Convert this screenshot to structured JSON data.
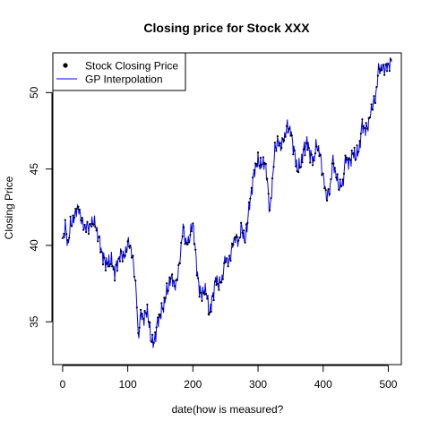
{
  "chart_data": {
    "type": "line",
    "title": "Closing price for Stock XXX",
    "xlabel": "date(how is measured?",
    "ylabel": "Closing Price",
    "xlim": [
      -15,
      520
    ],
    "ylim": [
      32.2,
      52.6
    ],
    "xticks": [
      0,
      100,
      200,
      300,
      400,
      500
    ],
    "yticks": [
      35,
      40,
      45,
      50
    ],
    "grid": false,
    "legend_position": "top-left",
    "colors": {
      "points": "#000000",
      "line": "#0000ff",
      "axes": "#000000"
    },
    "series": [
      {
        "name": "Stock Closing Price",
        "kind": "points"
      },
      {
        "name": "GP Interpolation",
        "kind": "line"
      }
    ],
    "anchors_x": [
      0,
      4,
      8,
      12,
      18,
      22,
      26,
      32,
      40,
      48,
      55,
      62,
      68,
      75,
      80,
      85,
      90,
      95,
      100,
      105,
      110,
      113,
      116,
      120,
      125,
      130,
      135,
      140,
      145,
      150,
      155,
      160,
      168,
      172,
      178,
      185,
      190,
      195,
      200,
      205,
      210,
      215,
      220,
      225,
      230,
      235,
      240,
      245,
      250,
      255,
      260,
      265,
      270,
      275,
      280,
      285,
      290,
      295,
      300,
      305,
      310,
      315,
      318,
      322,
      326,
      330,
      335,
      340,
      345,
      350,
      355,
      360,
      365,
      370,
      375,
      380,
      385,
      390,
      395,
      400,
      405,
      410,
      415,
      420,
      425,
      430,
      435,
      440,
      445,
      450,
      455,
      460,
      465,
      470,
      475,
      480,
      485,
      490,
      495,
      500,
      505
    ],
    "anchors_y": [
      40.2,
      41.3,
      40.0,
      41.3,
      41.8,
      42.5,
      42.2,
      41.2,
      41.2,
      41.6,
      40.6,
      39.2,
      38.8,
      39.0,
      38.2,
      39.0,
      39.5,
      39.2,
      40.2,
      39.8,
      38.3,
      37.0,
      34.0,
      35.5,
      35.2,
      35.8,
      34.0,
      33.5,
      34.8,
      35.5,
      36.0,
      37.0,
      38.0,
      37.2,
      38.3,
      41.2,
      40.0,
      40.5,
      41.5,
      39.0,
      37.0,
      36.8,
      37.2,
      35.5,
      36.5,
      37.8,
      37.4,
      37.8,
      39.2,
      38.8,
      39.8,
      40.6,
      40.2,
      41.2,
      40.2,
      42.0,
      43.6,
      45.0,
      45.5,
      45.2,
      45.5,
      44.0,
      42.0,
      44.2,
      46.3,
      46.8,
      46.5,
      47.0,
      47.8,
      47.5,
      46.3,
      45.0,
      45.2,
      46.2,
      46.8,
      46.0,
      45.5,
      46.6,
      46.0,
      44.5,
      43.2,
      43.5,
      45.6,
      44.5,
      43.8,
      44.0,
      45.8,
      45.3,
      46.0,
      45.8,
      46.2,
      47.9,
      47.5,
      48.0,
      49.1,
      49.5,
      51.5,
      51.6,
      51.6,
      51.8,
      52.0
    ]
  },
  "legend": {
    "items": [
      {
        "label": "Stock Closing Price"
      },
      {
        "label": "GP Interpolation"
      }
    ]
  }
}
